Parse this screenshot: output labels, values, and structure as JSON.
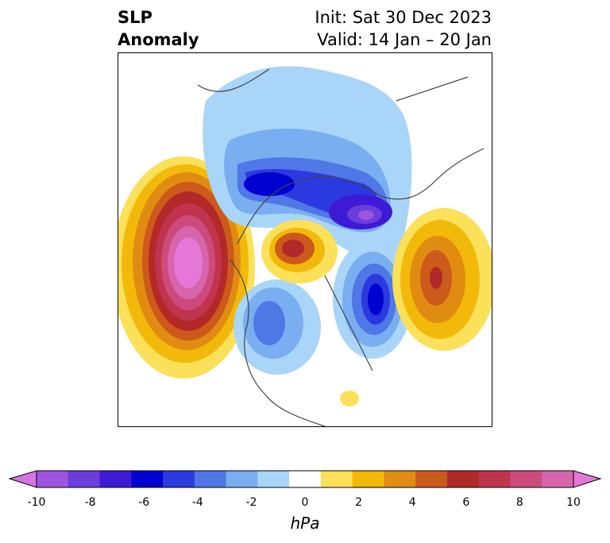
{
  "title": {
    "left_line1": "SLP",
    "left_line2": "Anomaly",
    "right_line1": "Init: Sat 30 Dec 2023",
    "right_line2": "Valid: 14 Jan – 20 Jan"
  },
  "colorbar": {
    "units": "hPa",
    "ticks": [
      "-10",
      "-8",
      "-6",
      "-4",
      "-2",
      "0",
      "2",
      "4",
      "6",
      "8",
      "10"
    ],
    "colors": [
      "#d473e6",
      "#9d55e0",
      "#6b3ddc",
      "#3f1ad6",
      "#0000d0",
      "#2a3ae0",
      "#4f77e6",
      "#79aef0",
      "#a9d5f8",
      "#ffffff",
      "#fbe05a",
      "#f2b90a",
      "#e08c12",
      "#cc5a1a",
      "#b32828",
      "#c0344e",
      "#cc4b7c",
      "#d765ab",
      "#e477d8"
    ]
  }
}
